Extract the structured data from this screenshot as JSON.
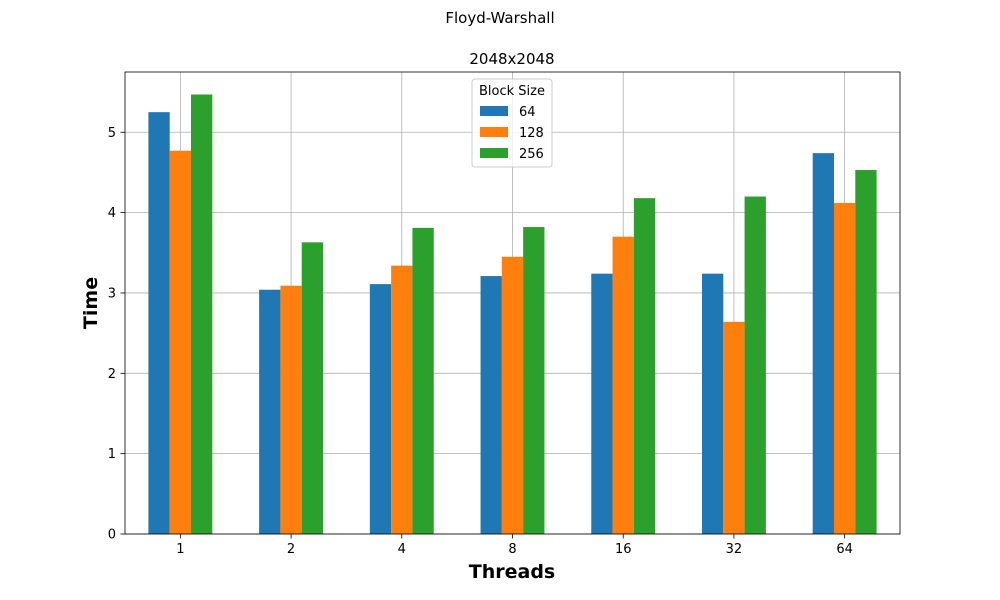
{
  "figure": {
    "suptitle": "Floyd-Warshall"
  },
  "chart_data": {
    "type": "bar",
    "title": "2048x2048",
    "xlabel": "Threads",
    "ylabel": "Time",
    "categories": [
      "1",
      "2",
      "4",
      "8",
      "16",
      "32",
      "64"
    ],
    "series": [
      {
        "name": "64",
        "color": "#1f77b4",
        "values": [
          5.25,
          3.04,
          3.11,
          3.21,
          3.24,
          3.24,
          4.74
        ]
      },
      {
        "name": "128",
        "color": "#ff7f0e",
        "values": [
          4.77,
          3.09,
          3.34,
          3.45,
          3.7,
          2.64,
          4.12
        ]
      },
      {
        "name": "256",
        "color": "#2ca02c",
        "values": [
          5.47,
          3.63,
          3.81,
          3.82,
          4.18,
          4.2,
          4.53
        ]
      }
    ],
    "ylim": [
      0,
      5.75
    ],
    "yticks": [
      0,
      1,
      2,
      3,
      4,
      5
    ],
    "grid": true,
    "legend": {
      "title": "Block Size",
      "placement": "top-center"
    }
  }
}
